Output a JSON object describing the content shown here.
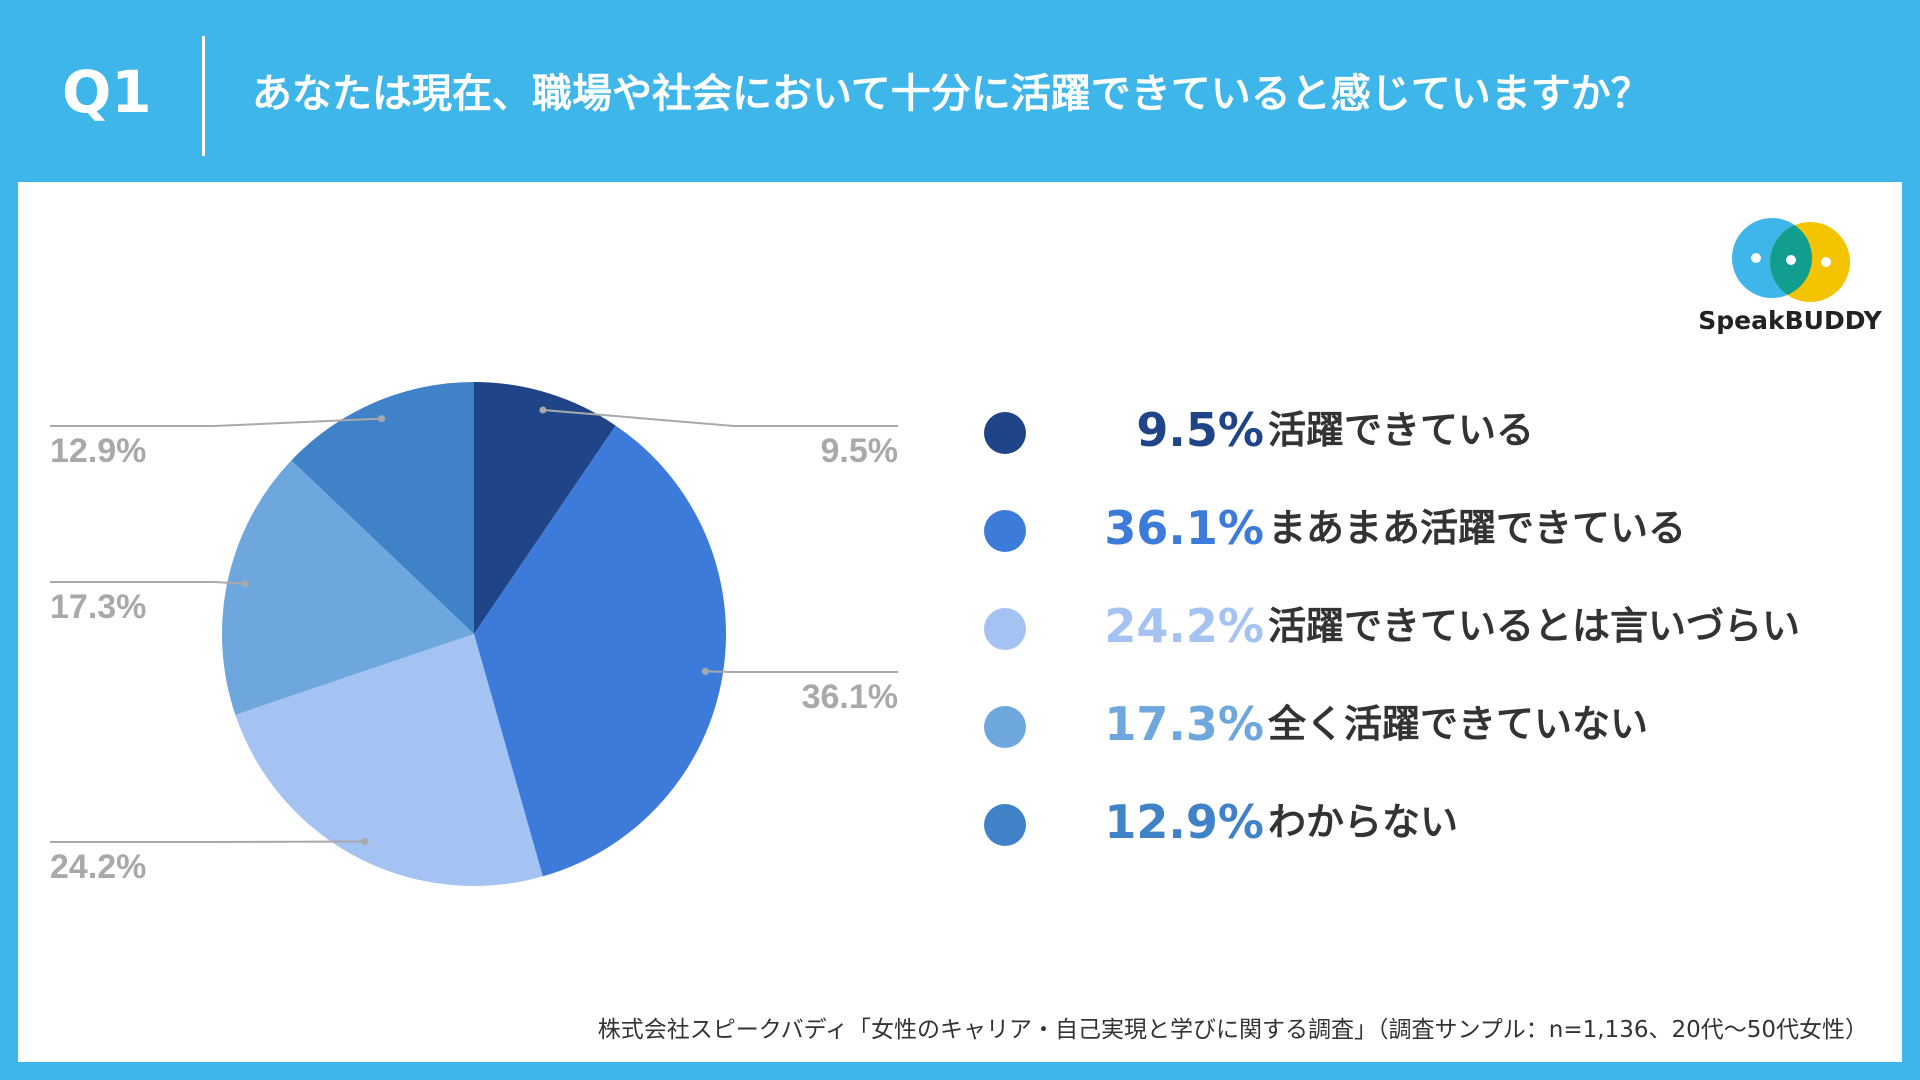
{
  "header": {
    "q_label": "Q1",
    "question": "あなたは現在、職場や社会において十分に活躍できていると感じていますか？"
  },
  "logo": {
    "text": "SpeakBUDDY",
    "icon": "speakbuddy-logo-icon"
  },
  "source": "株式会社スピークバディ「女性のキャリア・自己実現と学びに関する調査」（調査サンプル：n=1,136、20代〜50代女性）",
  "colors": {
    "background": "#3FB6EA",
    "panel": "#FFFFFF",
    "callout": "#A9A9A9"
  },
  "chart_data": {
    "type": "pie",
    "unit": "%",
    "start_angle_deg": 0,
    "direction": "clockwise",
    "slices": [
      {
        "label": "活躍できている",
        "value": 9.5,
        "display": "9.5%",
        "color": "#1F4588",
        "text_color": "#1F4588",
        "callout_side": "right"
      },
      {
        "label": "まあまあ活躍できている",
        "value": 36.1,
        "display": "36.1%",
        "color": "#3D7BDB",
        "text_color": "#3D7BDB",
        "callout_side": "right"
      },
      {
        "label": "活躍できているとは言いづらい",
        "value": 24.2,
        "display": "24.2%",
        "color": "#A4C3F3",
        "text_color": "#A4C3F3",
        "callout_side": "left"
      },
      {
        "label": "全く活躍できていない",
        "value": 17.3,
        "display": "17.3%",
        "color": "#6EA6DE",
        "text_color": "#6EA6DE",
        "callout_side": "left"
      },
      {
        "label": "わからない",
        "value": 12.9,
        "display": "12.9%",
        "color": "#3F82C7",
        "text_color": "#3F82C7",
        "callout_side": "left"
      }
    ]
  }
}
